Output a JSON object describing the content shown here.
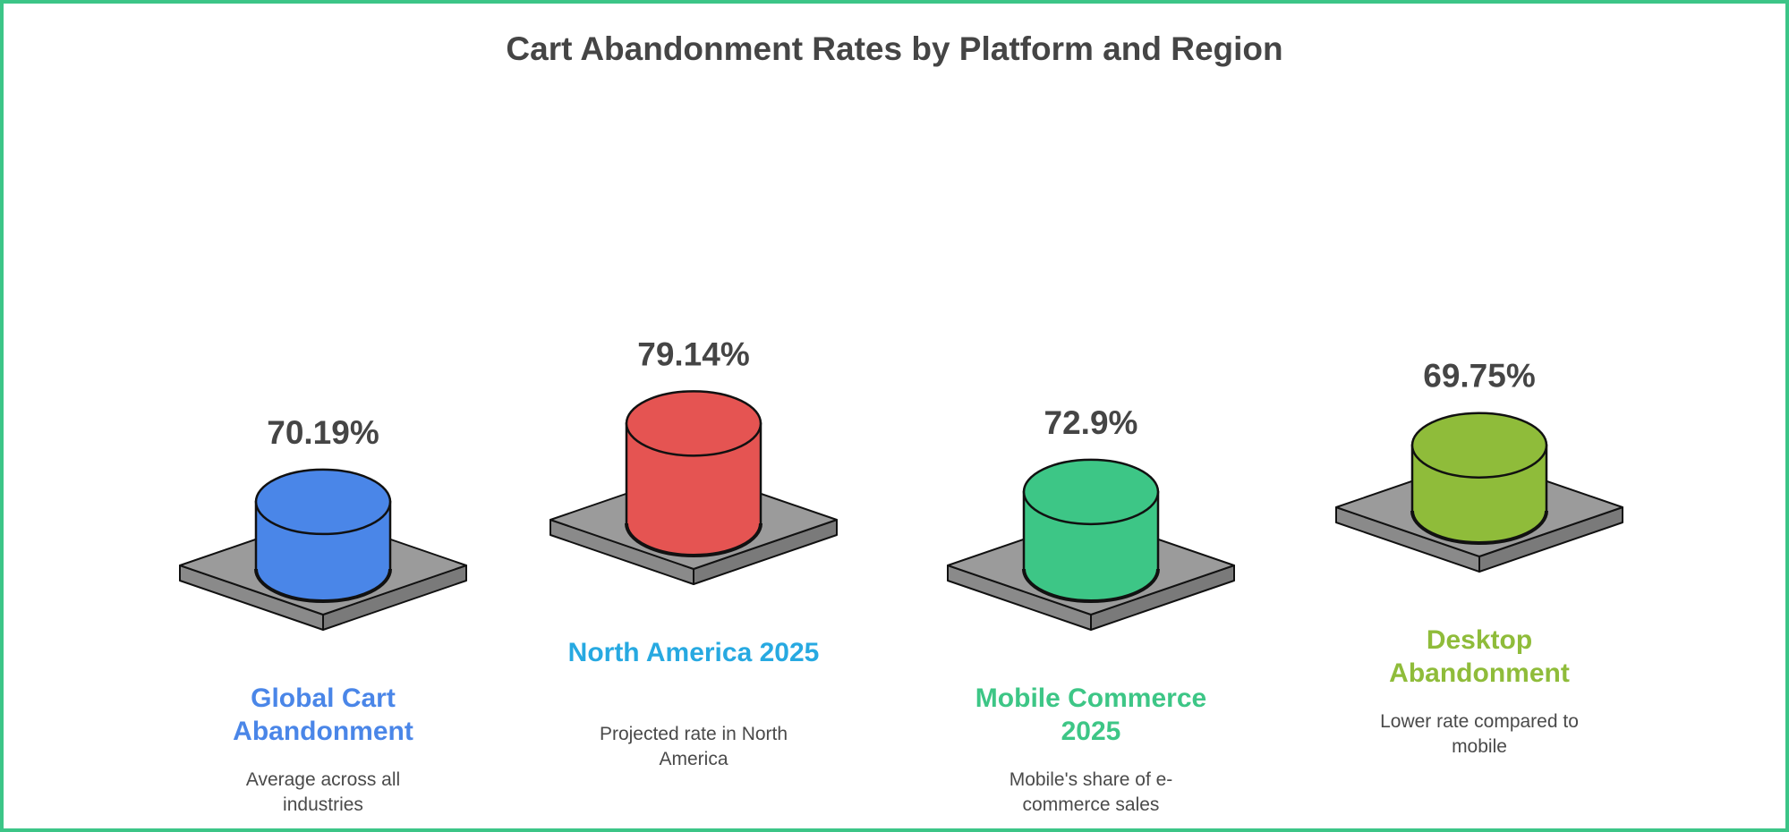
{
  "chart_data": {
    "type": "bar",
    "title": "Cart Abandonment Rates by Platform and Region",
    "categories": [
      "Global Cart Abandonment",
      "North America 2025",
      "Mobile Commerce 2025",
      "Desktop Abandonment"
    ],
    "values": [
      70.19,
      79.14,
      72.9,
      69.75
    ],
    "value_labels": [
      "70.19%",
      "79.14%",
      "72.9%",
      "69.75%"
    ],
    "descriptions": [
      "Average across all industries",
      "Projected rate in North America",
      "Mobile's share of e-commerce sales",
      "Lower rate compared to mobile"
    ],
    "colors": [
      "#4a86e8",
      "#e55452",
      "#3dc686",
      "#8fbc3a"
    ],
    "label_colors": [
      "#4a86e8",
      "#27a9e1",
      "#3dc686",
      "#8fbc3a"
    ]
  }
}
